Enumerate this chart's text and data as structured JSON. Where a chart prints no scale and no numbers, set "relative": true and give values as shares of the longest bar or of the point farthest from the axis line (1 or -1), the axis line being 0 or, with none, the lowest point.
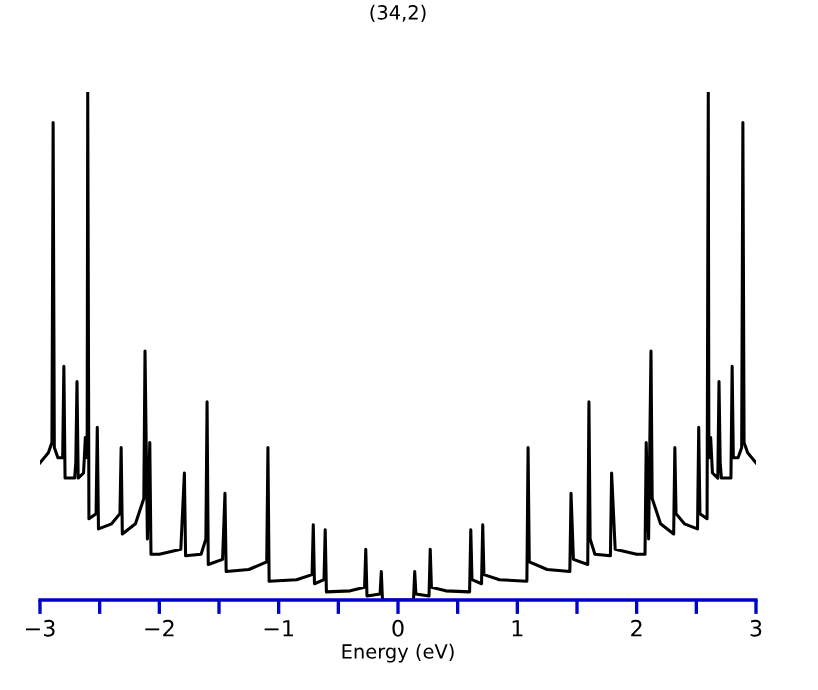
{
  "chart_data": {
    "type": "line",
    "title": "(34,2)",
    "xlabel": "Energy (eV)",
    "relative": true,
    "xlim": [
      -3,
      3
    ],
    "xticks": [
      -3,
      {
        "value": -2.5,
        "label": null
      },
      -2,
      {
        "value": -1.5,
        "label": null
      },
      -1,
      {
        "value": -0.5,
        "label": null
      },
      0,
      {
        "value": 0.5,
        "label": null
      },
      1,
      {
        "value": 1.5,
        "label": null
      },
      2,
      {
        "value": 2.5,
        "label": null
      },
      3
    ],
    "tick_labels": "x",
    "grid": false,
    "marker": "none",
    "line_style": "solid",
    "series": [
      {
        "color": "#000000",
        "x": [
          -3.0,
          -2.93,
          -2.9,
          -2.89,
          -2.88,
          -2.85,
          -2.81,
          -2.8,
          -2.79,
          -2.71,
          -2.7,
          -2.69,
          -2.68,
          -2.635,
          -2.62,
          -2.605,
          -2.6,
          -2.59,
          -2.53,
          -2.52,
          -2.51,
          -2.4,
          -2.33,
          -2.32,
          -2.31,
          -2.2,
          -2.13,
          -2.12,
          -2.1,
          -2.08,
          -2.07,
          -2.0,
          -1.82,
          -1.79,
          -1.78,
          -1.65,
          -1.61,
          -1.6,
          -1.59,
          -1.47,
          -1.45,
          -1.44,
          -1.25,
          -1.1,
          -1.09,
          -1.08,
          -0.85,
          -0.72,
          -0.71,
          -0.7,
          -0.62,
          -0.61,
          -0.6,
          -0.4,
          -0.28,
          -0.27,
          -0.26,
          -0.15,
          -0.14,
          -0.13,
          0.13,
          0.14,
          0.15,
          0.26,
          0.27,
          0.28,
          0.4,
          0.6,
          0.61,
          0.62,
          0.7,
          0.71,
          0.72,
          0.85,
          1.08,
          1.09,
          1.1,
          1.25,
          1.44,
          1.45,
          1.47,
          1.59,
          1.6,
          1.61,
          1.65,
          1.78,
          1.79,
          1.82,
          2.0,
          2.07,
          2.08,
          2.1,
          2.12,
          2.13,
          2.2,
          2.31,
          2.32,
          2.33,
          2.4,
          2.51,
          2.52,
          2.53,
          2.59,
          2.6,
          2.605,
          2.62,
          2.635,
          2.68,
          2.69,
          2.7,
          2.71,
          2.79,
          2.8,
          2.81,
          2.85,
          2.88,
          2.89,
          2.9,
          2.93,
          3.0
        ],
        "values": [
          0.27,
          0.29,
          0.31,
          0.94,
          0.3,
          0.28,
          0.28,
          0.46,
          0.24,
          0.24,
          0.27,
          0.43,
          0.24,
          0.25,
          0.32,
          0.28,
          1.0,
          0.16,
          0.17,
          0.34,
          0.14,
          0.15,
          0.17,
          0.3,
          0.13,
          0.15,
          0.2,
          0.49,
          0.12,
          0.31,
          0.09,
          0.09,
          0.1,
          0.25,
          0.087,
          0.09,
          0.12,
          0.39,
          0.07,
          0.08,
          0.21,
          0.056,
          0.06,
          0.075,
          0.3,
          0.037,
          0.04,
          0.05,
          0.148,
          0.032,
          0.04,
          0.138,
          0.016,
          0.018,
          0.025,
          0.1,
          0.008,
          0.012,
          0.056,
          0.0,
          0.0,
          0.056,
          0.012,
          0.008,
          0.1,
          0.025,
          0.018,
          0.016,
          0.138,
          0.04,
          0.032,
          0.148,
          0.05,
          0.04,
          0.037,
          0.3,
          0.075,
          0.06,
          0.056,
          0.21,
          0.08,
          0.07,
          0.39,
          0.12,
          0.09,
          0.087,
          0.25,
          0.1,
          0.09,
          0.09,
          0.31,
          0.12,
          0.49,
          0.2,
          0.15,
          0.13,
          0.3,
          0.17,
          0.15,
          0.14,
          0.34,
          0.17,
          0.16,
          1.0,
          0.28,
          0.32,
          0.25,
          0.24,
          0.43,
          0.27,
          0.24,
          0.24,
          0.46,
          0.28,
          0.28,
          0.3,
          0.94,
          0.31,
          0.29,
          0.27
        ]
      }
    ]
  }
}
